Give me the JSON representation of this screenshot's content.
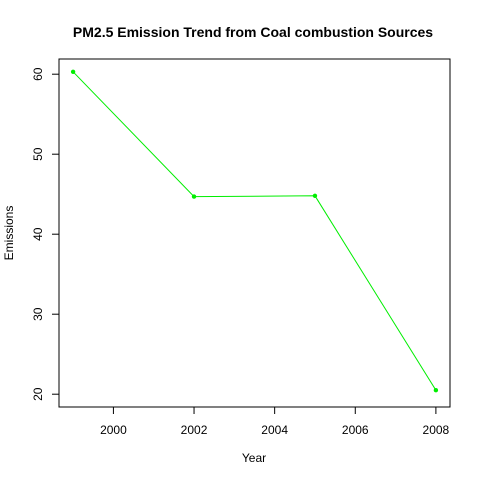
{
  "chart_data": {
    "type": "line",
    "title": "PM2.5 Emission Trend from Coal combustion Sources",
    "xlabel": "Year",
    "ylabel": "Emissions",
    "x": [
      1999,
      2002,
      2005,
      2008
    ],
    "series": [
      {
        "values": [
          60.3,
          44.7,
          44.8,
          20.5
        ]
      }
    ],
    "xlim": [
      1998.65,
      2008.35
    ],
    "ylim": [
      18.4,
      61.9
    ],
    "xticks": [
      2000,
      2002,
      2004,
      2006,
      2008
    ],
    "yticks": [
      20,
      30,
      40,
      50,
      60
    ],
    "line_color": "#00ee00",
    "grid": false,
    "markers": true
  }
}
